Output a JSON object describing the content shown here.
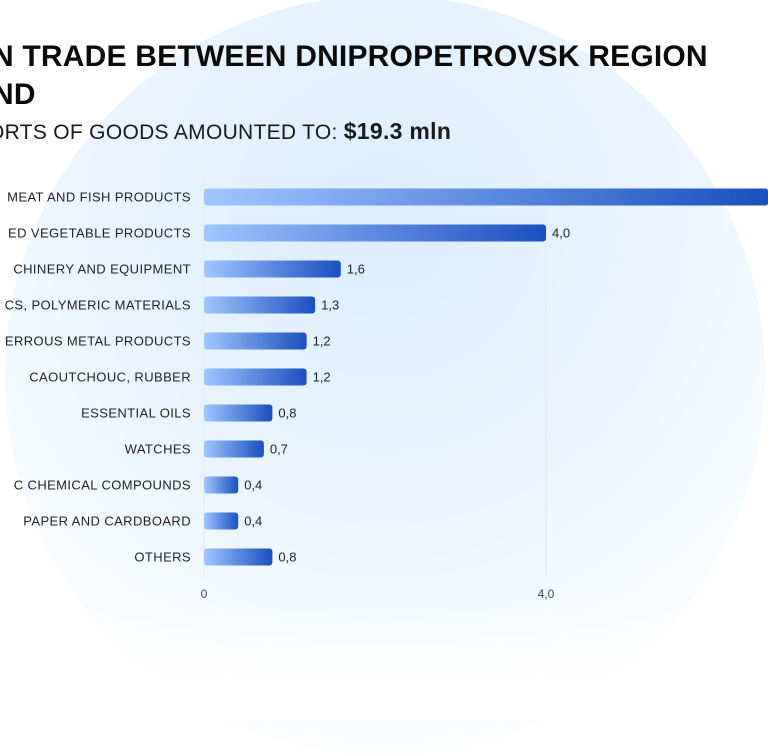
{
  "header": {
    "title_line1": "N TRADE BETWEEN DNIPROPETROVSK REGION",
    "title_line2": "ND",
    "subtitle": "ORTS OF GOODS AMOUNTED TO:",
    "total": "$19.3 mln"
  },
  "chart_data": {
    "type": "bar",
    "orientation": "horizontal",
    "categories": [
      "MEAT AND FISH PRODUCTS",
      "ED VEGETABLE PRODUCTS",
      "CHINERY AND EQUIPMENT",
      "CS, POLYMERIC MATERIALS",
      "ERROUS METAL PRODUCTS",
      "CAOUTCHOUC, RUBBER",
      "ESSENTIAL OILS",
      "WATCHES",
      "C CHEMICAL COMPOUNDS",
      "PAPER AND CARDBOARD",
      "OTHERS"
    ],
    "values": [
      6.6,
      4.0,
      1.6,
      1.3,
      1.2,
      1.2,
      0.8,
      0.7,
      0.4,
      0.4,
      0.8
    ],
    "value_labels": [
      "",
      "4,0",
      "1,6",
      "1,3",
      "1,2",
      "1,2",
      "0,8",
      "0,7",
      "0,4",
      "0,4",
      "0,8"
    ],
    "x_ticks": [
      0,
      4
    ],
    "x_tick_labels": [
      "0",
      "4,0"
    ],
    "grid": "vertical gridlines at ticks",
    "colors": {
      "bar_start": "#9fc7ff",
      "bar_end": "#1a4fbf",
      "grid": "#e3e6ea"
    }
  }
}
